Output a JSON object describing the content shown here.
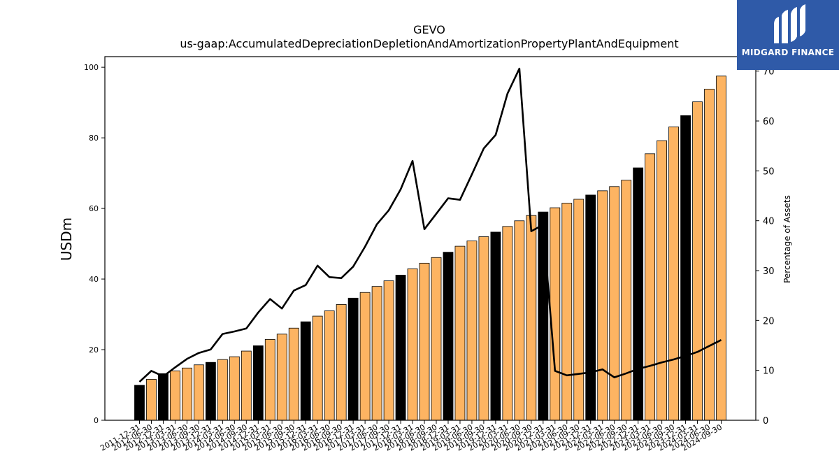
{
  "brand": {
    "name": "MIDGARD FINANCE",
    "color": "#2f5aa8",
    "icon": "midgard-logo-icon"
  },
  "chart_data": {
    "type": "bar",
    "title": "GEVO",
    "subtitle": "us-gaap:AccumulatedDepreciationDepletionAndAmortizationPropertyPlantAndEquipment",
    "ylabel": "USDm",
    "y2label": "Percentage of Assets",
    "ylim": [
      0,
      103
    ],
    "y2lim": [
      0,
      72.9
    ],
    "yticks": [
      0,
      20,
      40,
      60,
      80,
      100
    ],
    "y2ticks": [
      0,
      10,
      20,
      30,
      40,
      50,
      60,
      70
    ],
    "colors": {
      "annual": "#000000",
      "quarterly": "#fdb462",
      "line": "#000000"
    },
    "categories": [
      "2011-12-31",
      "2012-06-30",
      "2012-12-31",
      "2013-03-31",
      "2013-06-30",
      "2013-09-30",
      "2013-12-31",
      "2014-03-31",
      "2014-06-30",
      "2014-09-30",
      "2014-12-31",
      "2015-03-31",
      "2015-06-30",
      "2015-09-30",
      "2015-12-31",
      "2016-03-31",
      "2016-06-30",
      "2016-09-30",
      "2016-12-31",
      "2017-03-31",
      "2017-06-30",
      "2017-09-30",
      "2017-12-31",
      "2018-03-31",
      "2018-06-30",
      "2018-09-30",
      "2018-12-31",
      "2019-03-31",
      "2019-06-30",
      "2019-09-30",
      "2019-12-31",
      "2020-03-31",
      "2020-06-30",
      "2020-09-30",
      "2020-12-31",
      "2021-03-31",
      "2021-06-30",
      "2021-09-30",
      "2021-12-31",
      "2022-03-31",
      "2022-06-30",
      "2022-09-30",
      "2022-12-31",
      "2023-03-31",
      "2023-06-30",
      "2023-09-30",
      "2023-12-31",
      "2024-03-31",
      "2024-06-30",
      "2024-09-30"
    ],
    "annual": [
      true,
      false,
      true,
      false,
      false,
      false,
      true,
      false,
      false,
      false,
      true,
      false,
      false,
      false,
      true,
      false,
      false,
      false,
      true,
      false,
      false,
      false,
      true,
      false,
      false,
      false,
      true,
      false,
      false,
      false,
      true,
      false,
      false,
      false,
      true,
      false,
      false,
      false,
      true,
      false,
      false,
      false,
      true,
      false,
      false,
      false,
      true,
      false,
      false,
      false
    ],
    "series": [
      {
        "name": "",
        "axis": "left",
        "type": "bar",
        "values": [
          9.9,
          11.6,
          13.2,
          14.0,
          14.8,
          15.7,
          16.4,
          17.2,
          18.0,
          19.6,
          21.1,
          22.9,
          24.4,
          26.1,
          27.9,
          29.5,
          31.0,
          32.8,
          34.6,
          36.2,
          37.9,
          39.5,
          41.1,
          42.9,
          44.5,
          46.1,
          47.6,
          49.3,
          50.8,
          52.0,
          53.3,
          54.9,
          56.5,
          58.0,
          59.0,
          60.2,
          61.5,
          62.6,
          63.8,
          65.0,
          66.2,
          68.0,
          71.5,
          75.5,
          79.2,
          83.1,
          86.3,
          90.2,
          93.8,
          97.5
        ]
      },
      {
        "name": "",
        "axis": "right",
        "type": "line",
        "values": [
          7.7,
          9.9,
          8.8,
          10.6,
          12.3,
          13.5,
          14.2,
          17.3,
          17.8,
          18.4,
          21.6,
          24.3,
          22.4,
          26.0,
          27.1,
          31.0,
          28.7,
          28.5,
          30.8,
          34.8,
          39.3,
          42.1,
          46.3,
          52.0,
          38.3,
          41.4,
          44.5,
          44.2,
          49.3,
          54.5,
          57.2,
          65.5,
          70.5,
          37.9,
          39.2,
          9.9,
          9.0,
          9.3,
          9.6,
          10.2,
          8.6,
          9.4,
          10.3,
          10.9,
          11.6,
          12.2,
          12.9,
          13.7,
          14.9,
          16.1
        ]
      }
    ]
  }
}
